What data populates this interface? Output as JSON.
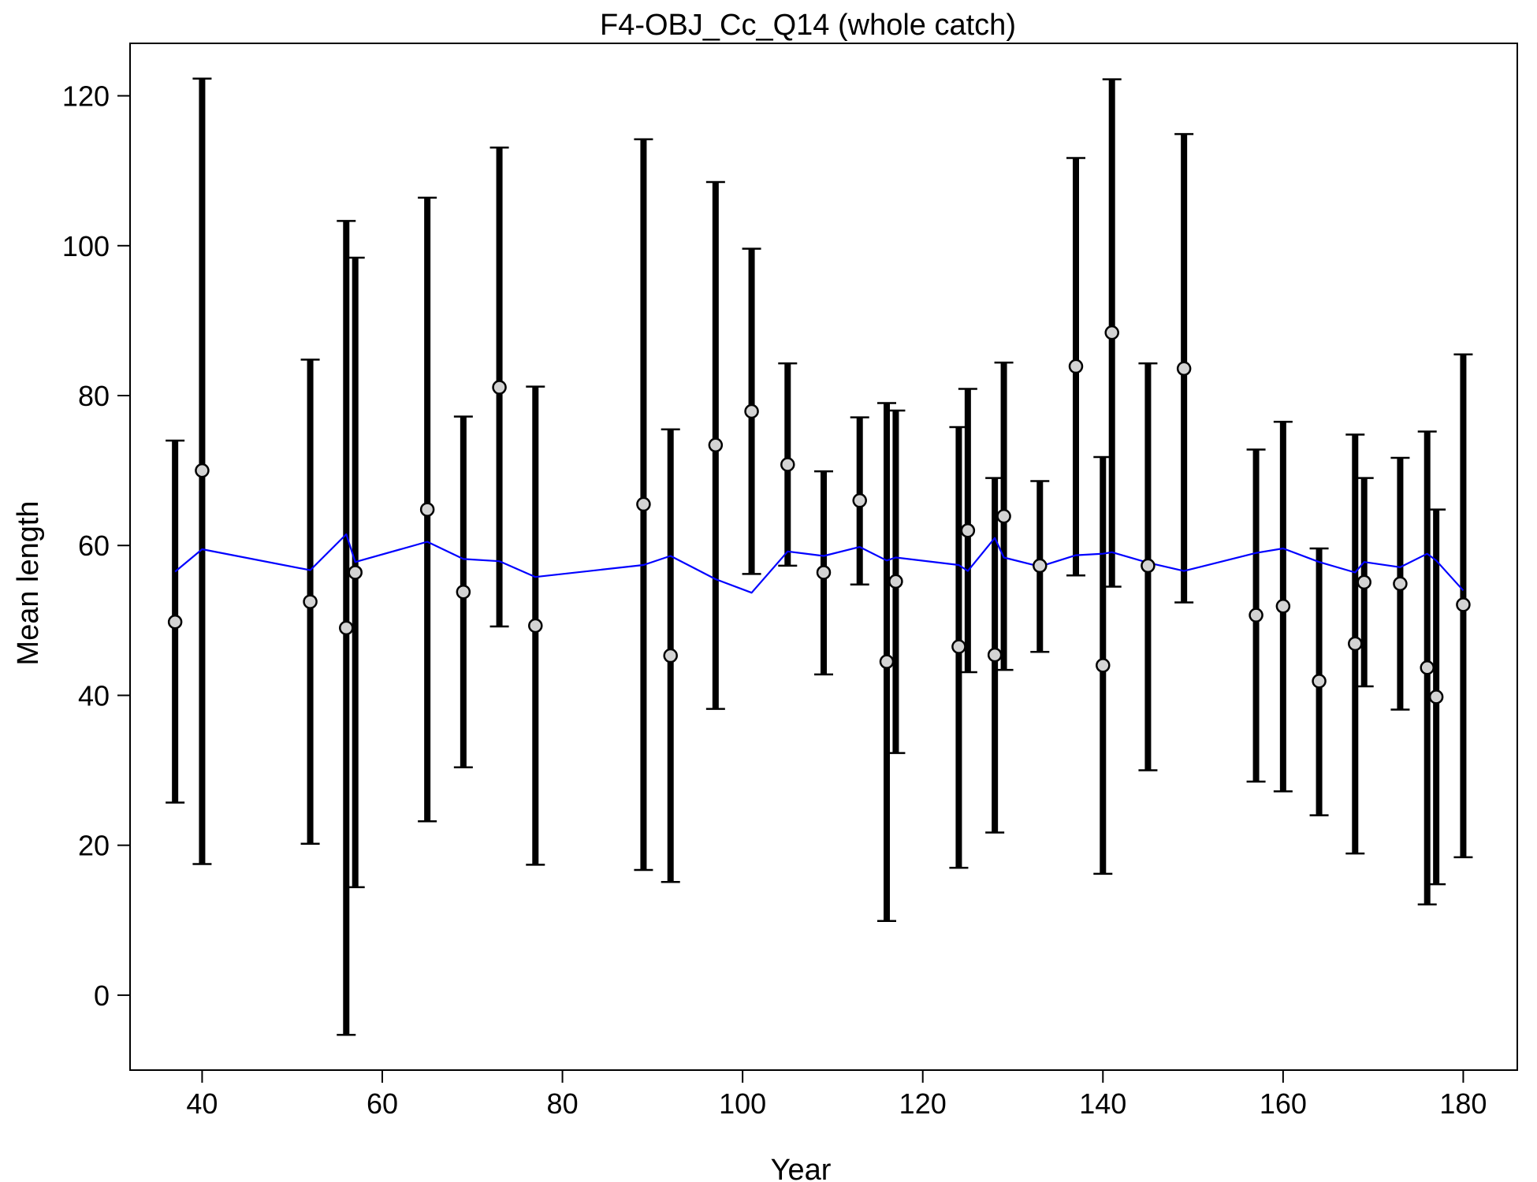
{
  "chart_data": {
    "type": "scatter",
    "title": "F4-OBJ_Cc_Q14 (whole catch)",
    "xlabel": "Year",
    "ylabel": "Mean length",
    "xlim": [
      32,
      186
    ],
    "ylim": [
      -10,
      127
    ],
    "x_ticks": [
      40,
      60,
      80,
      100,
      120,
      140,
      160,
      180
    ],
    "y_ticks": [
      0,
      20,
      40,
      60,
      80,
      100,
      120
    ],
    "grid": false,
    "colors": {
      "observed_fill": "#d3d3d3",
      "interval": "#000000",
      "expected_line": "#0000ff",
      "axis": "#000000"
    },
    "series": [
      {
        "type": "points_with_intervals",
        "points": [
          {
            "x": 37,
            "y": 49.8,
            "lower": 25.7,
            "upper": 74.0
          },
          {
            "x": 40,
            "y": 70.0,
            "lower": 17.5,
            "upper": 122.3
          },
          {
            "x": 52,
            "y": 52.5,
            "lower": 20.2,
            "upper": 84.8
          },
          {
            "x": 56,
            "y": 49.0,
            "lower": -5.3,
            "upper": 103.3
          },
          {
            "x": 57,
            "y": 56.4,
            "lower": 14.4,
            "upper": 98.4
          },
          {
            "x": 65,
            "y": 64.8,
            "lower": 23.2,
            "upper": 106.4
          },
          {
            "x": 69,
            "y": 53.8,
            "lower": 30.4,
            "upper": 77.2
          },
          {
            "x": 73,
            "y": 81.1,
            "lower": 49.2,
            "upper": 113.1
          },
          {
            "x": 77,
            "y": 49.3,
            "lower": 17.4,
            "upper": 81.2
          },
          {
            "x": 89,
            "y": 65.5,
            "lower": 16.7,
            "upper": 114.2
          },
          {
            "x": 92,
            "y": 45.3,
            "lower": 15.1,
            "upper": 75.5
          },
          {
            "x": 97,
            "y": 73.4,
            "lower": 38.2,
            "upper": 108.5
          },
          {
            "x": 101,
            "y": 77.9,
            "lower": 56.2,
            "upper": 99.6
          },
          {
            "x": 105,
            "y": 70.8,
            "lower": 57.3,
            "upper": 84.3
          },
          {
            "x": 109,
            "y": 56.4,
            "lower": 42.8,
            "upper": 69.9
          },
          {
            "x": 113,
            "y": 66.0,
            "lower": 54.8,
            "upper": 77.1
          },
          {
            "x": 116,
            "y": 44.5,
            "lower": 9.9,
            "upper": 79.0
          },
          {
            "x": 117,
            "y": 55.2,
            "lower": 32.3,
            "upper": 78.0
          },
          {
            "x": 124,
            "y": 46.5,
            "lower": 17.0,
            "upper": 75.8
          },
          {
            "x": 125,
            "y": 62.0,
            "lower": 43.1,
            "upper": 80.9
          },
          {
            "x": 128,
            "y": 45.4,
            "lower": 21.7,
            "upper": 69.0
          },
          {
            "x": 129,
            "y": 63.9,
            "lower": 43.4,
            "upper": 84.4
          },
          {
            "x": 133,
            "y": 57.3,
            "lower": 45.8,
            "upper": 68.6
          },
          {
            "x": 137,
            "y": 83.9,
            "lower": 56.0,
            "upper": 111.7
          },
          {
            "x": 140,
            "y": 44.0,
            "lower": 16.2,
            "upper": 71.8
          },
          {
            "x": 141,
            "y": 88.4,
            "lower": 54.5,
            "upper": 122.2
          },
          {
            "x": 145,
            "y": 57.3,
            "lower": 30.0,
            "upper": 84.3
          },
          {
            "x": 149,
            "y": 83.6,
            "lower": 52.4,
            "upper": 114.9
          },
          {
            "x": 157,
            "y": 50.7,
            "lower": 28.5,
            "upper": 72.8
          },
          {
            "x": 160,
            "y": 51.9,
            "lower": 27.2,
            "upper": 76.5
          },
          {
            "x": 164,
            "y": 41.9,
            "lower": 24.0,
            "upper": 59.6
          },
          {
            "x": 168,
            "y": 46.9,
            "lower": 18.9,
            "upper": 74.8
          },
          {
            "x": 169,
            "y": 55.1,
            "lower": 41.2,
            "upper": 69.0
          },
          {
            "x": 173,
            "y": 54.9,
            "lower": 38.1,
            "upper": 71.7
          },
          {
            "x": 176,
            "y": 43.7,
            "lower": 12.1,
            "upper": 75.2
          },
          {
            "x": 177,
            "y": 39.8,
            "lower": 14.8,
            "upper": 64.8
          },
          {
            "x": 180,
            "y": 52.1,
            "lower": 18.4,
            "upper": 85.5
          }
        ]
      },
      {
        "type": "line",
        "x": [
          37,
          40,
          52,
          56,
          57,
          65,
          69,
          73,
          77,
          89,
          92,
          97,
          101,
          105,
          109,
          113,
          116,
          117,
          124,
          125,
          128,
          129,
          133,
          137,
          140,
          141,
          145,
          149,
          157,
          160,
          164,
          168,
          169,
          173,
          176,
          177,
          180
        ],
        "values": [
          56.5,
          59.5,
          56.7,
          61.5,
          57.8,
          60.5,
          58.2,
          57.9,
          55.8,
          57.4,
          58.6,
          55.5,
          53.7,
          59.2,
          58.6,
          59.8,
          58.0,
          58.4,
          57.4,
          56.6,
          61.0,
          58.4,
          57.2,
          58.7,
          58.9,
          59.1,
          57.7,
          56.6,
          59.0,
          59.6,
          57.8,
          56.4,
          57.8,
          57.1,
          58.9,
          58.0,
          54.0
        ]
      }
    ]
  }
}
